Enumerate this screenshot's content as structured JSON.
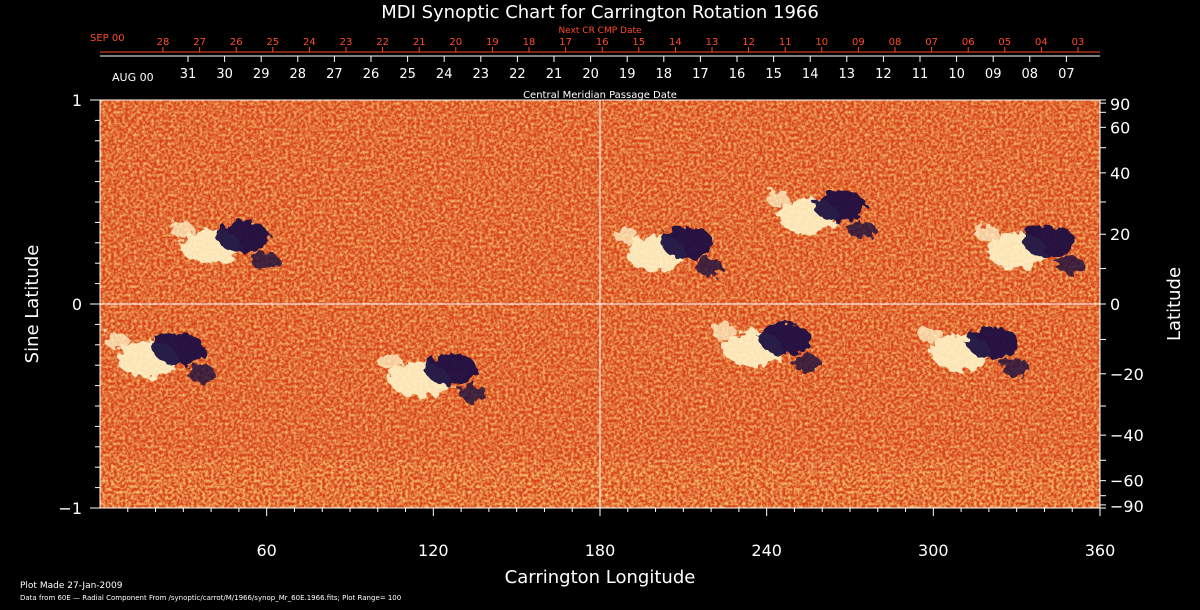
{
  "chart_data": {
    "type": "heatmap",
    "title": "MDI Synoptic Chart for Carrington Rotation 1966",
    "xlabel": "Carrington Longitude",
    "ylabel": "Sine Latitude",
    "ylabel_right": "Latitude",
    "xlim": [
      0,
      360
    ],
    "ylim": [
      -1,
      1
    ],
    "x_ticks": [
      "60",
      "120",
      "180",
      "240",
      "300",
      "360"
    ],
    "y_ticks_left": [
      "1",
      "0",
      "−1"
    ],
    "y_ticks_right": [
      "90",
      "60",
      "40",
      "20",
      "0",
      "−20",
      "−40",
      "−60",
      "−90"
    ],
    "next_cr_axis": {
      "label": "Next CR CMP Date",
      "month_label": "SEP 00",
      "days": [
        "28",
        "27",
        "26",
        "25",
        "24",
        "23",
        "22",
        "21",
        "20",
        "19",
        "18",
        "17",
        "16",
        "15",
        "14",
        "13",
        "12",
        "11",
        "10",
        "09",
        "08",
        "07",
        "06",
        "05",
        "04",
        "03"
      ]
    },
    "cmp_axis": {
      "label": "Central Meridian Passage Date",
      "month_label": "AUG 00",
      "days": [
        "31",
        "30",
        "29",
        "28",
        "27",
        "26",
        "25",
        "24",
        "23",
        "22",
        "21",
        "20",
        "19",
        "18",
        "17",
        "16",
        "15",
        "14",
        "13",
        "12",
        "11",
        "10",
        "09",
        "08",
        "07"
      ]
    },
    "grid": true,
    "colors": {
      "background": "#000000",
      "field_base": "#e0501a",
      "positive": "#fff4c8",
      "negative": "#1a1040",
      "accent_red": "#ff4a2a"
    },
    "active_regions": [
      {
        "lon": 22,
        "sinlat": -0.25,
        "polarity": "mixed"
      },
      {
        "lon": 45,
        "sinlat": 0.3,
        "polarity": "mixed"
      },
      {
        "lon": 120,
        "sinlat": -0.35,
        "polarity": "mixed"
      },
      {
        "lon": 205,
        "sinlat": 0.27,
        "polarity": "mixed"
      },
      {
        "lon": 240,
        "sinlat": -0.2,
        "polarity": "mixed"
      },
      {
        "lon": 260,
        "sinlat": 0.45,
        "polarity": "mixed"
      },
      {
        "lon": 335,
        "sinlat": 0.28,
        "polarity": "mixed"
      },
      {
        "lon": 315,
        "sinlat": -0.22,
        "polarity": "mixed"
      }
    ]
  },
  "footer": {
    "plot_made": "Plot Made 27-Jan-2009",
    "data_from": "Data from 60E — Radial Component From /synoptic/carrot/M/1966/synop_Mr_60E.1966.fits; Plot Range= 100"
  }
}
